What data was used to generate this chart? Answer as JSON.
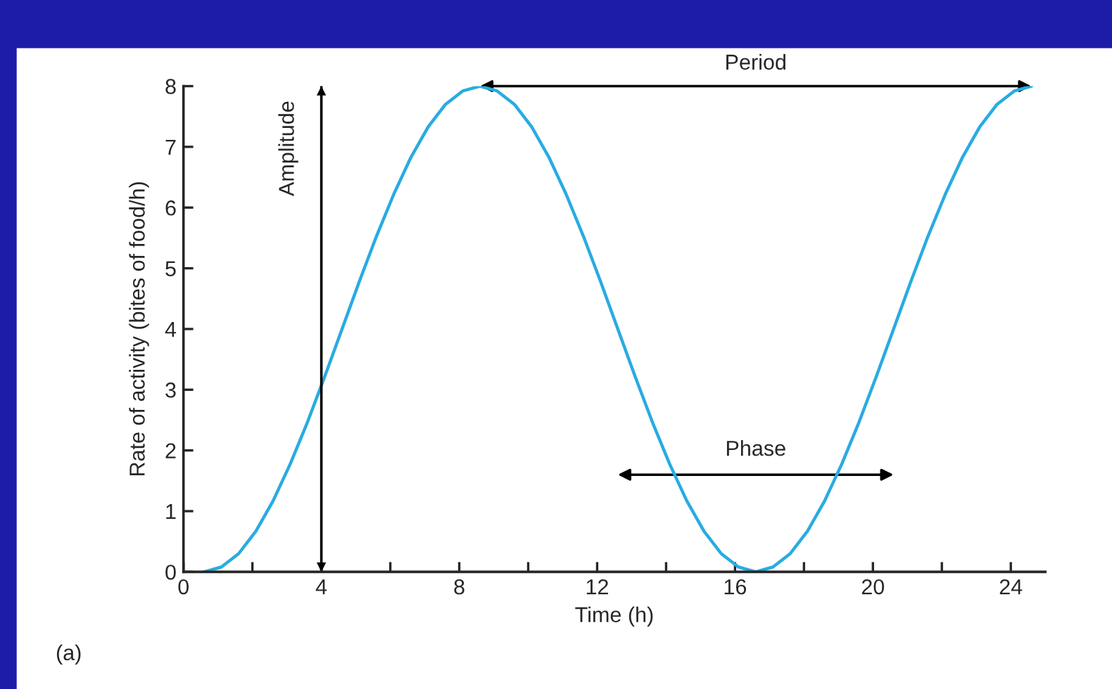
{
  "chart_data": {
    "type": "line",
    "xlabel": "Time (h)",
    "ylabel": "Rate of activity (bites of food/h)",
    "x": [
      0.6,
      1.1,
      1.6,
      2.1,
      2.6,
      3.1,
      3.6,
      4.1,
      4.6,
      5.1,
      5.6,
      6.1,
      6.6,
      7.1,
      7.6,
      8.1,
      8.6,
      9.1,
      9.6,
      10.1,
      10.6,
      11.1,
      11.6,
      12.1,
      12.6,
      13.1,
      13.6,
      14.1,
      14.6,
      15.1,
      15.6,
      16.1,
      16.6,
      17.1,
      17.6,
      18.1,
      18.6,
      19.1,
      19.6,
      20.1,
      20.6,
      21.1,
      21.6,
      22.1,
      22.6,
      23.1,
      23.6,
      24.1,
      24.6
    ],
    "series": [
      {
        "color": "#29abe2",
        "values": [
          0,
          0.08,
          0.3,
          0.67,
          1.17,
          1.78,
          2.47,
          3.22,
          4,
          4.78,
          5.53,
          6.22,
          6.83,
          7.33,
          7.7,
          7.92,
          8,
          7.92,
          7.7,
          7.33,
          6.83,
          6.22,
          5.53,
          4.78,
          4,
          3.22,
          2.47,
          1.78,
          1.17,
          0.67,
          0.3,
          0.08,
          0,
          0.08,
          0.3,
          0.67,
          1.17,
          1.78,
          2.47,
          3.22,
          4,
          4.78,
          5.53,
          6.22,
          6.83,
          7.33,
          7.7,
          7.92,
          8
        ]
      }
    ],
    "xlim": [
      0,
      25
    ],
    "ylim": [
      0,
      8
    ],
    "xticks": [
      0,
      {
        "value": 2,
        "label": null
      },
      4,
      {
        "value": 6,
        "label": null
      },
      8,
      {
        "value": 10,
        "label": null
      },
      12,
      {
        "value": 14,
        "label": null
      },
      16,
      {
        "value": 18,
        "label": null
      },
      20,
      {
        "value": 22,
        "label": null
      },
      24
    ],
    "yticks": [
      0,
      1,
      2,
      3,
      4,
      5,
      6,
      7,
      8
    ],
    "grid": false,
    "marker": "none",
    "line_style": "solid",
    "ref_lines": [
      {
        "axis": "x",
        "value": 4,
        "label": "Amplitude",
        "color": "#000000",
        "line_style": "solid"
      }
    ],
    "annotations": [
      "Period",
      "Phase",
      "(a)"
    ]
  }
}
